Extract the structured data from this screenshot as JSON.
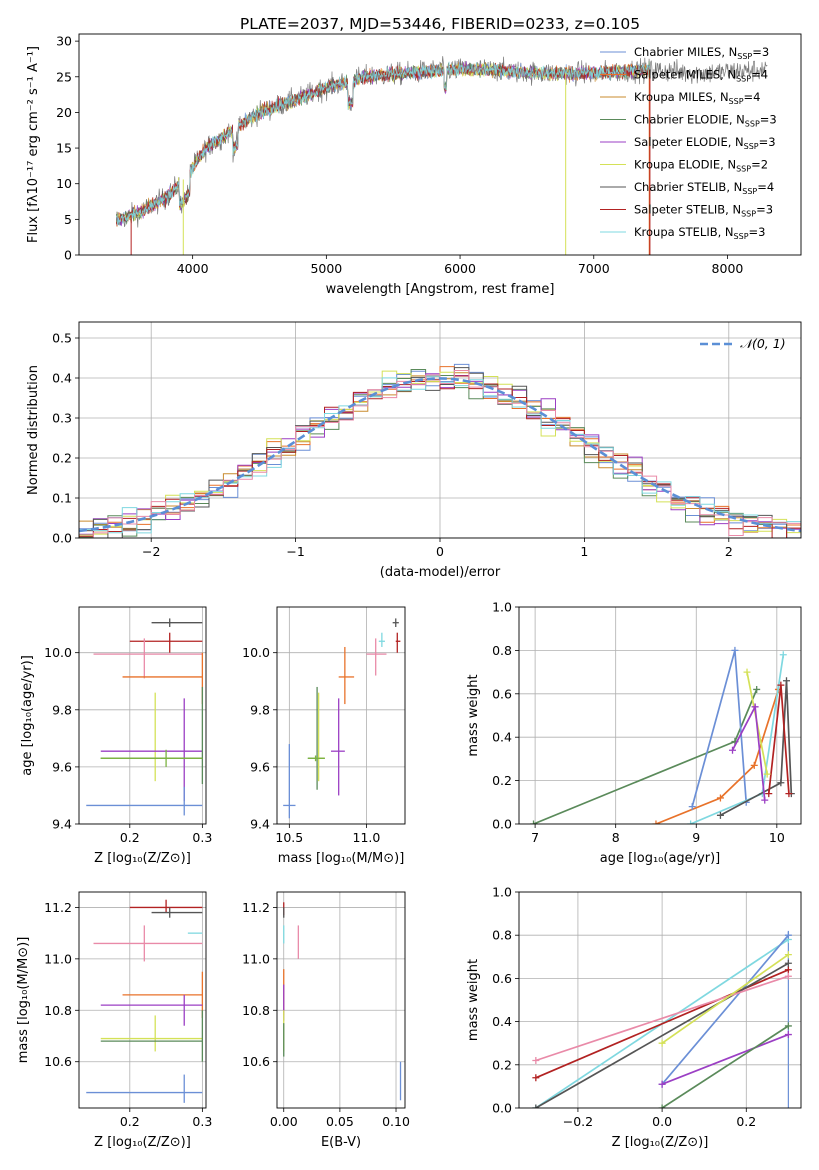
{
  "title": "PLATE=2037, MJD=53446, FIBERID=0233, z=0.105",
  "colors": {
    "Chabrier MILES": "#6b8fd6",
    "Salpeter MILES": "#e8722a",
    "Kroupa MILES": "#c98b2e",
    "Chabrier ELODIE": "#5a8a5a",
    "Salpeter ELODIE": "#9b3fc4",
    "Kroupa ELODIE": "#d4e157",
    "Chabrier STELIB": "#555555",
    "Salpeter STELIB": "#b22222",
    "Kroupa STELIB": "#7fd8e0",
    "Pink": "#e98aa8",
    "Green": "#7cb342",
    "Normal": "#5b8fd6"
  },
  "chart_data": [
    {
      "id": "spectrum",
      "type": "line",
      "xlabel": "wavelength [Angstrom, rest frame]",
      "ylabel": "Flux [fλ10⁻¹⁷ erg cm⁻² s⁻¹ A⁻¹]",
      "xlim": [
        3150,
        8550
      ],
      "ylim": [
        0,
        31
      ],
      "xticks": [
        4000,
        5000,
        6000,
        7000,
        8000
      ],
      "yticks": [
        0,
        5,
        10,
        15,
        20,
        25,
        30
      ],
      "legend_position": "top-right",
      "legend": [
        "Chabrier MILES, N_SSP=3",
        "Salpeter MILES, N_SSP=4",
        "Kroupa MILES, N_SSP=4",
        "Chabrier ELODIE, N_SSP=3",
        "Salpeter ELODIE, N_SSP=3",
        "Kroupa ELODIE, N_SSP=2",
        "Chabrier STELIB, N_SSP=4",
        "Salpeter STELIB, N_SSP=3",
        "Kroupa STELIB, N_SSP=3"
      ],
      "legend_keys": [
        "Chabrier MILES",
        "Salpeter MILES",
        "Kroupa MILES",
        "Chabrier ELODIE",
        "Salpeter ELODIE",
        "Kroupa ELODIE",
        "Chabrier STELIB",
        "Salpeter STELIB",
        "Kroupa STELIB"
      ],
      "data_range": [
        3430,
        8300
      ],
      "continuum_x": [
        3430,
        3600,
        3800,
        3950,
        4100,
        4300,
        4500,
        4800,
        5000,
        5300,
        5600,
        5900,
        6200,
        6600,
        7000,
        7400,
        7800,
        8300
      ],
      "continuum_y": [
        4.8,
        6.0,
        8.0,
        11.0,
        15.0,
        17.5,
        20.0,
        22.0,
        23.5,
        25.0,
        25.5,
        26.0,
        26.0,
        25.5,
        25.5,
        26.0,
        25.5,
        26.0
      ],
      "model_range": [
        3430,
        7420
      ]
    },
    {
      "id": "residuals",
      "type": "histogram",
      "xlabel": "(data-model)/error",
      "ylabel": "Normed distribution",
      "xlim": [
        -2.5,
        2.5
      ],
      "ylim": [
        0,
        0.54
      ],
      "xticks": [
        -2,
        -1,
        0,
        1,
        2
      ],
      "xticklabels": [
        "−2",
        "−1",
        "0",
        "1",
        "2"
      ],
      "yticks": [
        0.0,
        0.1,
        0.2,
        0.3,
        0.4,
        0.5
      ],
      "legend": "𝒩(0, 1)",
      "legend_position": "top-right",
      "bin_width": 0.1
    },
    {
      "id": "age_vs_Z",
      "type": "errorbar",
      "xlabel": "Z [log₁₀(Z/Z⊙)]",
      "ylabel": "age  [log₁₀(age/yr)]",
      "xlim": [
        0.13,
        0.305
      ],
      "ylim": [
        9.4,
        10.16
      ],
      "xticks": [
        0.2,
        0.3
      ],
      "yticks": [
        9.4,
        9.6,
        9.8,
        10.0
      ],
      "points": [
        {
          "key": "Chabrier STELIB",
          "x": 0.255,
          "y": 10.105,
          "xl": 0.23,
          "xh": 0.3,
          "yl": 10.09,
          "yh": 10.12
        },
        {
          "key": "Salpeter STELIB",
          "x": 0.255,
          "y": 10.04,
          "xl": 0.2,
          "xh": 0.3,
          "yl": 10.0,
          "yh": 10.07
        },
        {
          "key": "Pink",
          "x": 0.22,
          "y": 9.995,
          "xl": 0.15,
          "xh": 0.3,
          "yl": 9.91,
          "yh": 10.05
        },
        {
          "key": "Salpeter MILES",
          "x": 0.3,
          "y": 9.915,
          "xl": 0.19,
          "xh": 0.3,
          "yl": 9.82,
          "yh": 10.0
        },
        {
          "key": "Kroupa ELODIE",
          "x": 0.235,
          "y": 9.63,
          "xl": 0.16,
          "xh": 0.3,
          "yl": 9.55,
          "yh": 9.86
        },
        {
          "key": "Salpeter ELODIE",
          "x": 0.275,
          "y": 9.655,
          "xl": 0.16,
          "xh": 0.3,
          "yl": 9.48,
          "yh": 9.84
        },
        {
          "key": "Chabrier ELODIE",
          "x": 0.3,
          "y": 9.63,
          "xl": 0.16,
          "xh": 0.3,
          "yl": 9.54,
          "yh": 9.88
        },
        {
          "key": "Green",
          "x": 0.25,
          "y": 9.63,
          "xl": 0.16,
          "xh": 0.3,
          "yl": 9.6,
          "yh": 9.66
        },
        {
          "key": "Chabrier MILES",
          "x": 0.275,
          "y": 9.465,
          "xl": 0.14,
          "xh": 0.3,
          "yl": 9.43,
          "yh": 9.53
        }
      ]
    },
    {
      "id": "age_vs_mass",
      "type": "errorbar",
      "xlabel": "mass [log₁₀(M/M⊙)]",
      "ylabel": "",
      "xlim": [
        10.42,
        11.25
      ],
      "ylim": [
        9.4,
        10.16
      ],
      "xticks": [
        10.5,
        11.0
      ],
      "xticklabels": [
        "10.5",
        "11.0"
      ],
      "yticks": [
        9.4,
        9.6,
        9.8,
        10.0
      ],
      "points": [
        {
          "key": "Chabrier STELIB",
          "x": 11.19,
          "y": 10.105,
          "xl": 11.17,
          "xh": 11.21,
          "yl": 10.09,
          "yh": 10.12
        },
        {
          "key": "Salpeter STELIB",
          "x": 11.2,
          "y": 10.04,
          "xl": 11.19,
          "xh": 11.22,
          "yl": 10.0,
          "yh": 10.07
        },
        {
          "key": "Kroupa STELIB",
          "x": 11.1,
          "y": 10.04,
          "xl": 11.08,
          "xh": 11.12,
          "yl": 10.02,
          "yh": 10.07
        },
        {
          "key": "Pink",
          "x": 11.06,
          "y": 9.995,
          "xl": 11.0,
          "xh": 11.13,
          "yl": 9.92,
          "yh": 10.05
        },
        {
          "key": "Salpeter MILES",
          "x": 10.86,
          "y": 9.915,
          "xl": 10.82,
          "xh": 10.92,
          "yl": 9.82,
          "yh": 10.02
        },
        {
          "key": "Salpeter ELODIE",
          "x": 10.82,
          "y": 9.655,
          "xl": 10.77,
          "xh": 10.86,
          "yl": 9.5,
          "yh": 9.84
        },
        {
          "key": "Chabrier ELODIE",
          "x": 10.68,
          "y": 9.63,
          "xl": 10.62,
          "xh": 10.73,
          "yl": 9.52,
          "yh": 9.88
        },
        {
          "key": "Kroupa ELODIE",
          "x": 10.69,
          "y": 9.63,
          "xl": 10.65,
          "xh": 10.73,
          "yl": 9.55,
          "yh": 9.86
        },
        {
          "key": "Green",
          "x": 10.67,
          "y": 9.63,
          "xl": 10.62,
          "xh": 10.73,
          "yl": 9.62,
          "yh": 9.64
        },
        {
          "key": "Chabrier MILES",
          "x": 10.5,
          "y": 9.465,
          "xl": 10.46,
          "xh": 10.54,
          "yl": 9.42,
          "yh": 9.68
        }
      ]
    },
    {
      "id": "weight_vs_age",
      "type": "line",
      "xlabel": "age  [log₁₀(age/yr)]",
      "ylabel": "mass weight",
      "xlim": [
        6.8,
        10.3
      ],
      "ylim": [
        0,
        1.0
      ],
      "xticks": [
        7,
        8,
        9,
        10
      ],
      "yticks": [
        0.0,
        0.2,
        0.4,
        0.6,
        0.8,
        1.0
      ],
      "series": [
        {
          "key": "Chabrier ELODIE",
          "x": [
            6.98,
            9.48,
            9.75
          ],
          "y": [
            0.0,
            0.38,
            0.62
          ]
        },
        {
          "key": "Salpeter MILES",
          "x": [
            8.5,
            9.3,
            9.72,
            10.02
          ],
          "y": [
            0.0,
            0.12,
            0.27,
            0.62
          ]
        },
        {
          "key": "Chabrier MILES",
          "x": [
            8.95,
            9.48,
            9.62
          ],
          "y": [
            0.08,
            0.8,
            0.1
          ]
        },
        {
          "key": "Kroupa STELIB",
          "x": [
            8.93,
            9.82,
            10.08
          ],
          "y": [
            0.0,
            0.14,
            0.78
          ]
        },
        {
          "key": "Chabrier STELIB",
          "x": [
            9.3,
            10.05,
            10.12,
            10.18
          ],
          "y": [
            0.04,
            0.19,
            0.66,
            0.14
          ]
        },
        {
          "key": "Salpeter STELIB",
          "x": [
            9.9,
            10.05,
            10.15
          ],
          "y": [
            0.14,
            0.64,
            0.14
          ]
        },
        {
          "key": "Kroupa ELODIE",
          "x": [
            9.63,
            9.88
          ],
          "y": [
            0.7,
            0.23
          ]
        },
        {
          "key": "Salpeter ELODIE",
          "x": [
            9.45,
            9.73,
            9.85
          ],
          "y": [
            0.34,
            0.54,
            0.11
          ]
        }
      ]
    },
    {
      "id": "mass_vs_Z",
      "type": "errorbar",
      "xlabel": "Z [log₁₀(Z/Z⊙)]",
      "ylabel": "mass [log₁₀(M/M⊙)]",
      "xlim": [
        0.13,
        0.305
      ],
      "ylim": [
        10.42,
        11.26
      ],
      "xticks": [
        0.2,
        0.3
      ],
      "yticks": [
        10.6,
        10.8,
        11.0,
        11.2
      ],
      "points": [
        {
          "key": "Salpeter STELIB",
          "x": 0.25,
          "y": 11.2,
          "xl": 0.2,
          "xh": 0.3,
          "yl": 11.18,
          "yh": 11.23
        },
        {
          "key": "Chabrier STELIB",
          "x": 0.255,
          "y": 11.18,
          "xl": 0.23,
          "xh": 0.3,
          "yl": 11.16,
          "yh": 11.2
        },
        {
          "key": "Kroupa STELIB",
          "x": 0.29,
          "y": 11.1,
          "xl": 0.28,
          "xh": 0.3,
          "yl": 11.1,
          "yh": 11.1
        },
        {
          "key": "Pink",
          "x": 0.22,
          "y": 11.06,
          "xl": 0.15,
          "xh": 0.3,
          "yl": 10.99,
          "yh": 11.13
        },
        {
          "key": "Salpeter MILES",
          "x": 0.3,
          "y": 10.86,
          "xl": 0.19,
          "xh": 0.3,
          "yl": 10.77,
          "yh": 10.95
        },
        {
          "key": "Salpeter ELODIE",
          "x": 0.275,
          "y": 10.82,
          "xl": 0.16,
          "xh": 0.3,
          "yl": 10.74,
          "yh": 10.86
        },
        {
          "key": "Kroupa ELODIE",
          "x": 0.235,
          "y": 10.69,
          "xl": 0.16,
          "xh": 0.3,
          "yl": 10.64,
          "yh": 10.78
        },
        {
          "key": "Chabrier ELODIE",
          "x": 0.3,
          "y": 10.68,
          "xl": 0.16,
          "xh": 0.3,
          "yl": 10.6,
          "yh": 10.8
        },
        {
          "key": "Chabrier MILES",
          "x": 0.275,
          "y": 10.48,
          "xl": 0.14,
          "xh": 0.3,
          "yl": 10.44,
          "yh": 10.55
        }
      ]
    },
    {
      "id": "mass_vs_ebv",
      "type": "errorbar",
      "xlabel": "E(B-V)",
      "ylabel": "",
      "xlim": [
        -0.006,
        0.108
      ],
      "ylim": [
        10.42,
        11.26
      ],
      "xticks": [
        0.0,
        0.05,
        0.1
      ],
      "xticklabels": [
        "0.00",
        "0.05",
        "0.10"
      ],
      "yticks": [
        10.6,
        10.8,
        11.0,
        11.2
      ],
      "points": [
        {
          "key": "Salpeter STELIB",
          "x": 0.0,
          "y": 11.2,
          "xl": 0.0,
          "xh": 0.0,
          "yl": 11.17,
          "yh": 11.22
        },
        {
          "key": "Chabrier STELIB",
          "x": 0.0,
          "y": 11.18,
          "xl": 0.0,
          "xh": 0.0,
          "yl": 11.16,
          "yh": 11.2
        },
        {
          "key": "Kroupa STELIB",
          "x": 0.0,
          "y": 11.1,
          "xl": 0.0,
          "xh": 0.0,
          "yl": 11.06,
          "yh": 11.13
        },
        {
          "key": "Pink",
          "x": 0.013,
          "y": 11.06,
          "xl": 0.013,
          "xh": 0.013,
          "yl": 11.0,
          "yh": 11.13
        },
        {
          "key": "Salpeter MILES",
          "x": 0.0,
          "y": 10.88,
          "xl": 0.0,
          "xh": 0.0,
          "yl": 10.78,
          "yh": 10.96
        },
        {
          "key": "Salpeter ELODIE",
          "x": 0.0,
          "y": 10.84,
          "xl": 0.0,
          "xh": 0.0,
          "yl": 10.76,
          "yh": 10.9
        },
        {
          "key": "Kroupa ELODIE",
          "x": 0.0,
          "y": 10.69,
          "xl": 0.0,
          "xh": 0.0,
          "yl": 10.64,
          "yh": 10.8
        },
        {
          "key": "Chabrier ELODIE",
          "x": 0.0,
          "y": 10.68,
          "xl": 0.0,
          "xh": 0.0,
          "yl": 10.62,
          "yh": 10.75
        },
        {
          "key": "Chabrier MILES",
          "x": 0.104,
          "y": 10.5,
          "xl": 0.104,
          "xh": 0.104,
          "yl": 10.45,
          "yh": 10.6
        }
      ]
    },
    {
      "id": "weight_vs_Z",
      "type": "line",
      "xlabel": "Z [log₁₀(Z/Z⊙)]",
      "ylabel": "mass weight",
      "xlim": [
        -0.34,
        0.33
      ],
      "ylim": [
        0,
        1.0
      ],
      "xticks": [
        -0.2,
        0.0,
        0.2
      ],
      "xticklabels": [
        "−0.2",
        "0.0",
        "0.2"
      ],
      "yticks": [
        0.0,
        0.2,
        0.4,
        0.6,
        0.8,
        1.0
      ],
      "series": [
        {
          "key": "Kroupa STELIB",
          "x": [
            -0.3,
            0.3
          ],
          "y": [
            0.0,
            0.78
          ]
        },
        {
          "key": "Chabrier MILES",
          "x": [
            0.0,
            0.3
          ],
          "y": [
            0.11,
            0.8
          ]
        },
        {
          "key": "Salpeter STELIB",
          "x": [
            -0.3,
            0.3
          ],
          "y": [
            0.14,
            0.64
          ]
        },
        {
          "key": "Chabrier STELIB",
          "x": [
            -0.3,
            0.3
          ],
          "y": [
            0.0,
            0.67
          ]
        },
        {
          "key": "Pink",
          "x": [
            -0.3,
            0.3
          ],
          "y": [
            0.22,
            0.61
          ]
        },
        {
          "key": "Kroupa ELODIE",
          "x": [
            0.0,
            0.3
          ],
          "y": [
            0.3,
            0.71
          ]
        },
        {
          "key": "Salpeter ELODIE",
          "x": [
            0.0,
            0.3
          ],
          "y": [
            0.11,
            0.34
          ]
        },
        {
          "key": "Chabrier ELODIE",
          "x": [
            0.0,
            0.3
          ],
          "y": [
            0.0,
            0.38
          ]
        }
      ],
      "vert_line_x": 0.3
    }
  ]
}
